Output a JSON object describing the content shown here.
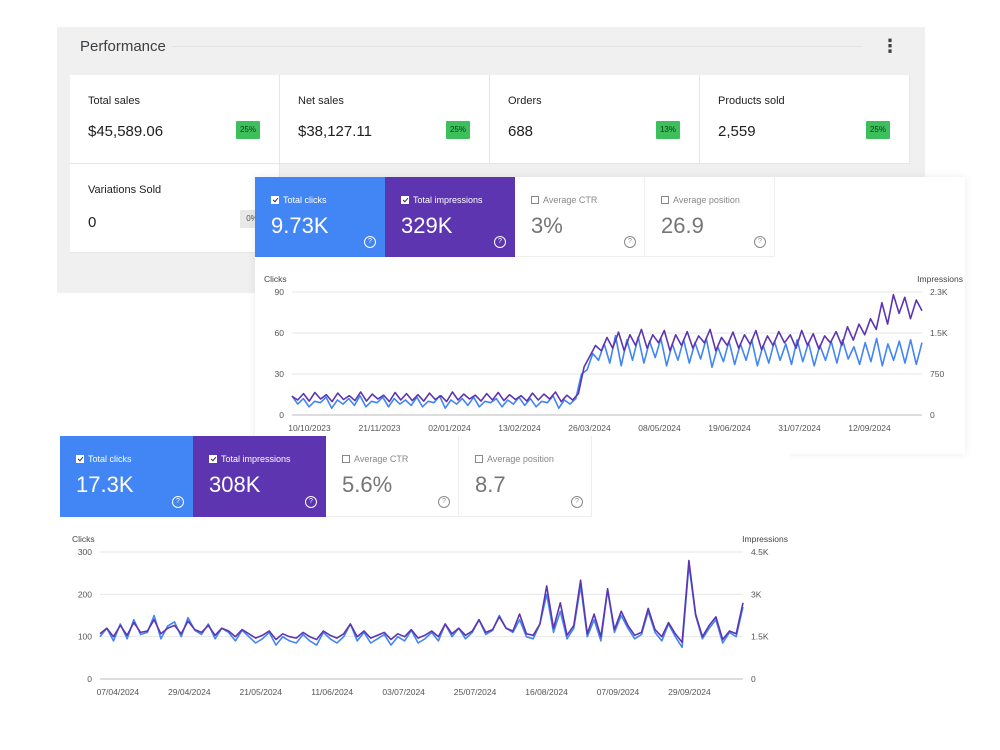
{
  "performance": {
    "title": "Performance",
    "menu_glyph": "⋮",
    "cards": [
      {
        "label": "Total sales",
        "value": "$45,589.06",
        "badge": "25%"
      },
      {
        "label": "Net sales",
        "value": "$38,127.11",
        "badge": "25%"
      },
      {
        "label": "Orders",
        "value": "688",
        "badge": "13%"
      },
      {
        "label": "Products sold",
        "value": "2,559",
        "badge": "25%"
      },
      {
        "label": "Variations Sold",
        "value": "0",
        "badge": "0%"
      }
    ],
    "badge_color": "#3dbf5c"
  },
  "gsc1": {
    "metrics": [
      {
        "label": "Total clicks",
        "value": "9.73K",
        "checked": true,
        "help": "?"
      },
      {
        "label": "Total impressions",
        "value": "329K",
        "checked": true,
        "help": "?"
      },
      {
        "label": "Average CTR",
        "value": "3%",
        "checked": false,
        "help": "?"
      },
      {
        "label": "Average position",
        "value": "26.9",
        "checked": false,
        "help": "?"
      }
    ]
  },
  "gsc2": {
    "metrics": [
      {
        "label": "Total clicks",
        "value": "17.3K",
        "checked": true,
        "help": "?"
      },
      {
        "label": "Total impressions",
        "value": "308K",
        "checked": true,
        "help": "?"
      },
      {
        "label": "Average CTR",
        "value": "5.6%",
        "checked": false,
        "help": "?"
      },
      {
        "label": "Average position",
        "value": "8.7",
        "checked": false,
        "help": "?"
      }
    ]
  },
  "colors": {
    "clicks": "#4285f4",
    "impressions": "#5e35b1"
  },
  "chart_data": [
    {
      "type": "line",
      "left_axis_title": "Clicks",
      "right_axis_title": "Impressions",
      "y_ticks": [
        "0",
        "30",
        "60",
        "90"
      ],
      "y2_ticks": [
        "0",
        "750",
        "1.5K",
        "2.3K"
      ],
      "ylim": [
        0,
        90
      ],
      "y2lim": [
        0,
        2300
      ],
      "x_ticks": [
        "10/10/2023",
        "21/11/2023",
        "02/01/2024",
        "13/02/2024",
        "26/03/2024",
        "08/05/2024",
        "19/06/2024",
        "31/07/2024",
        "12/09/2024"
      ],
      "grid": true,
      "series": [
        {
          "name": "Total clicks",
          "axis": "left",
          "values": [
            14,
            8,
            12,
            6,
            10,
            9,
            13,
            5,
            11,
            8,
            12,
            7,
            14,
            6,
            10,
            9,
            13,
            6,
            12,
            8,
            11,
            7,
            13,
            6,
            10,
            9,
            14,
            5,
            11,
            8,
            12,
            7,
            13,
            6,
            10,
            9,
            12,
            6,
            11,
            8,
            13,
            7,
            12,
            6,
            10,
            9,
            14,
            5,
            11,
            8,
            12,
            30,
            33,
            45,
            40,
            52,
            38,
            58,
            36,
            55,
            40,
            57,
            38,
            54,
            42,
            56,
            36,
            52,
            40,
            55,
            38,
            53,
            41,
            56,
            35,
            50,
            39,
            54,
            37,
            52,
            40,
            55,
            36,
            51,
            38,
            54,
            40,
            52,
            37,
            55,
            39,
            53,
            36,
            51,
            40,
            54,
            38,
            55,
            41,
            50,
            37,
            53,
            39,
            56,
            36,
            52,
            40,
            54,
            38,
            55,
            37,
            53
          ]
        },
        {
          "name": "Total impressions",
          "axis": "right",
          "values": [
            350,
            280,
            400,
            260,
            420,
            300,
            380,
            250,
            410,
            290,
            360,
            270,
            430,
            260,
            390,
            300,
            370,
            250,
            420,
            280,
            400,
            270,
            380,
            260,
            410,
            290,
            360,
            250,
            430,
            280,
            390,
            300,
            370,
            260,
            400,
            280,
            420,
            270,
            380,
            290,
            360,
            260,
            410,
            280,
            390,
            300,
            430,
            250,
            370,
            280,
            400,
            900,
            1100,
            1300,
            1200,
            1450,
            1250,
            1550,
            1200,
            1500,
            1300,
            1600,
            1250,
            1500,
            1350,
            1580,
            1200,
            1500,
            1300,
            1560,
            1250,
            1480,
            1350,
            1600,
            1200,
            1450,
            1300,
            1550,
            1250,
            1500,
            1320,
            1580,
            1220,
            1480,
            1300,
            1560,
            1350,
            1500,
            1250,
            1580,
            1300,
            1520,
            1230,
            1480,
            1350,
            1560,
            1300,
            1650,
            1400,
            1700,
            1500,
            1800,
            1600,
            2100,
            1700,
            2250,
            1900,
            2200,
            1800,
            2150,
            1950
          ]
        }
      ]
    },
    {
      "type": "line",
      "left_axis_title": "Clicks",
      "right_axis_title": "Impressions",
      "y_ticks": [
        "0",
        "100",
        "200",
        "300"
      ],
      "y2_ticks": [
        "0",
        "1.5K",
        "3K",
        "4.5K"
      ],
      "ylim": [
        0,
        300
      ],
      "y2lim": [
        0,
        4500
      ],
      "x_ticks": [
        "07/04/2024",
        "29/04/2024",
        "21/05/2024",
        "11/06/2024",
        "03/07/2024",
        "25/07/2024",
        "16/08/2024",
        "07/09/2024",
        "29/09/2024"
      ],
      "grid": true,
      "series": [
        {
          "name": "Total clicks",
          "axis": "left",
          "values": [
            100,
            120,
            90,
            130,
            95,
            140,
            105,
            110,
            150,
            95,
            125,
            135,
            100,
            145,
            115,
            105,
            130,
            95,
            120,
            110,
            90,
            115,
            100,
            85,
            95,
            110,
            80,
            100,
            90,
            85,
            105,
            90,
            80,
            110,
            95,
            85,
            100,
            130,
            90,
            110,
            85,
            95,
            105,
            80,
            100,
            90,
            115,
            85,
            95,
            110,
            90,
            130,
            100,
            120,
            95,
            110,
            140,
            105,
            115,
            150,
            120,
            110,
            140,
            100,
            95,
            130,
            200,
            110,
            160,
            95,
            120,
            220,
            100,
            140,
            90,
            210,
            110,
            150,
            120,
            95,
            105,
            160,
            110,
            90,
            130,
            100,
            75,
            270,
            150,
            95,
            120,
            140,
            85,
            110,
            100,
            170
          ]
        },
        {
          "name": "Total impressions",
          "axis": "right",
          "values": [
            1600,
            1800,
            1500,
            1900,
            1550,
            2000,
            1650,
            1700,
            2100,
            1600,
            1800,
            1900,
            1600,
            2050,
            1750,
            1650,
            1900,
            1550,
            1800,
            1700,
            1500,
            1750,
            1600,
            1450,
            1550,
            1700,
            1400,
            1600,
            1500,
            1450,
            1650,
            1500,
            1400,
            1700,
            1550,
            1450,
            1600,
            1950,
            1500,
            1700,
            1450,
            1550,
            1650,
            1400,
            1600,
            1500,
            1750,
            1450,
            1550,
            1700,
            1500,
            1950,
            1600,
            1800,
            1550,
            1700,
            2100,
            1650,
            1750,
            2200,
            1800,
            1700,
            2300,
            1600,
            1550,
            1950,
            3300,
            1800,
            2700,
            1550,
            1900,
            3500,
            1600,
            2300,
            1500,
            3200,
            1750,
            2400,
            1900,
            1550,
            1650,
            2500,
            1750,
            1500,
            2000,
            1600,
            1300,
            4200,
            2300,
            1500,
            1900,
            2200,
            1400,
            1700,
            1600,
            2700
          ]
        }
      ]
    }
  ]
}
